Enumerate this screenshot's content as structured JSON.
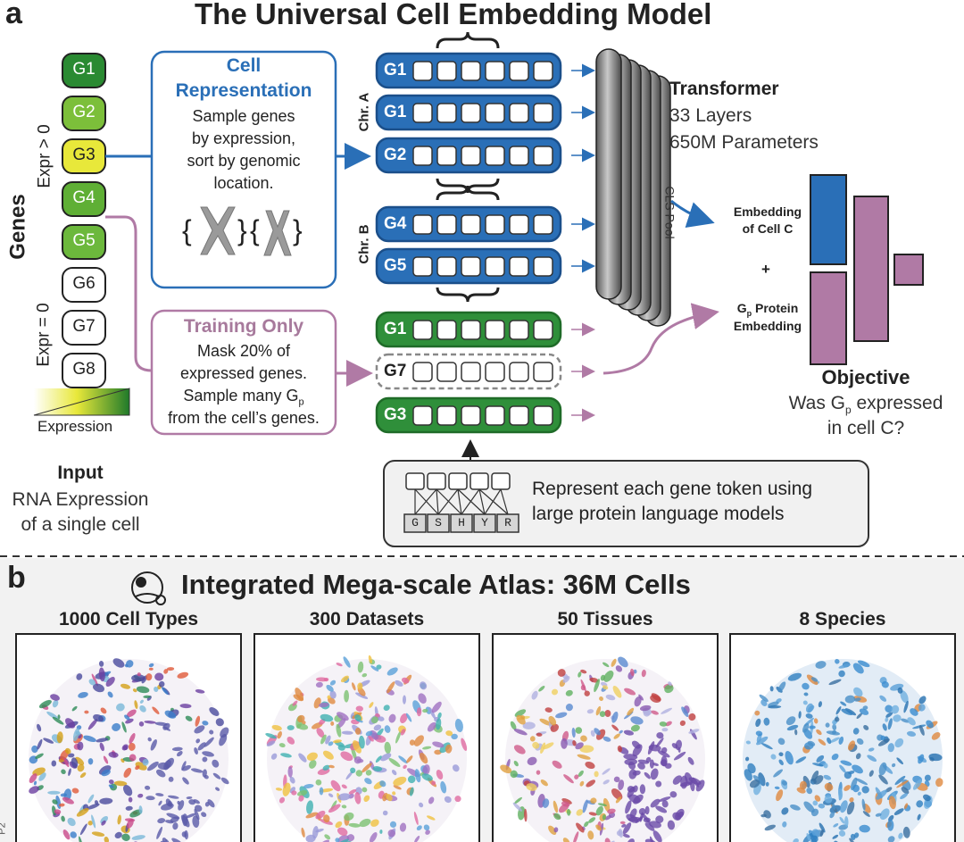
{
  "panel_a": {
    "letter": "a",
    "title": "The Universal Cell Embedding Model",
    "genes_label": "Genes",
    "expr_pos_label": "Expr > 0",
    "expr_zero_label": "Expr = 0",
    "genes": [
      "G1",
      "G2",
      "G3",
      "G4",
      "G5",
      "G6",
      "G7",
      "G8"
    ],
    "expression_label": "Expression",
    "input_title": "Input",
    "input_lines": [
      "RNA Expression",
      "of a single cell"
    ],
    "cell_rep": {
      "title": [
        "Cell",
        "Representation"
      ],
      "lines": [
        "Sample genes",
        "by expression,",
        "sort by genomic",
        "location."
      ]
    },
    "training": {
      "title": "Training Only",
      "line1": "Mask 20% of",
      "line2": "expressed genes.",
      "line3_pre": "Sample many G",
      "line3_sub": "p",
      "line4": "from the cell’s genes."
    },
    "chr_a": "Chr. A",
    "chr_b": "Chr. B",
    "token_rows": [
      {
        "label": "G1",
        "style": "blue"
      },
      {
        "label": "G1",
        "style": "blue"
      },
      {
        "label": "G2",
        "style": "blue"
      },
      {
        "label": "G4",
        "style": "blue"
      },
      {
        "label": "G5",
        "style": "blue"
      },
      {
        "label": "G1",
        "style": "green"
      },
      {
        "label": "G7",
        "style": "masked"
      },
      {
        "label": "G3",
        "style": "green"
      }
    ],
    "transformer": {
      "title": "Transformer",
      "layers": "33 Layers",
      "params": "650M Parameters",
      "cls": "CLS Pool"
    },
    "embedding_cell": [
      "Embedding",
      "of Cell C"
    ],
    "plus": "+",
    "protein_embedding": {
      "pre": "G",
      "sub": "p",
      "post": " Protein",
      "line2": "Embedding"
    },
    "objective": {
      "title": "Objective",
      "line1_pre": "Was G",
      "line1_sub": "p",
      "line1_post": " expressed",
      "line2": "in cell C?"
    },
    "plm_box": {
      "line1": "Represent each gene token using",
      "line2": "large protein language models",
      "letters": [
        "G",
        "S",
        "H",
        "Y",
        "R"
      ]
    }
  },
  "panel_b": {
    "letter": "b",
    "title": "Integrated Mega-scale Atlas: 36M Cells",
    "panels": [
      "1000 Cell Types",
      "300 Datasets",
      "50 Tissues",
      "8 Species"
    ]
  },
  "side_mark": "P2",
  "colors": {
    "blue": "#2a6fb7",
    "blue_dark": "#1b4f8a",
    "green": "#2f8f3a",
    "pink": "#b07aa5",
    "pink_text": "#a77a9c",
    "transformer_gray": "#8a8a8a",
    "gene_g1": "#2a8a32",
    "gene_g2": "#7cbf3a",
    "gene_g3": "#e8e83a",
    "gene_g4": "#5faf35",
    "gene_g5": "#6cb83c"
  }
}
